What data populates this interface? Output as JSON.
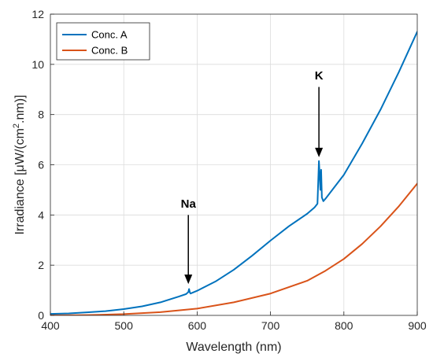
{
  "chart_data": {
    "type": "line",
    "title": "",
    "xlabel": "Wavelength (nm)",
    "ylabel_parts": {
      "before": "Irradiance [μW/(cm",
      "sup": "2",
      "after": ".nm)]"
    },
    "xlim": [
      400,
      900
    ],
    "ylim": [
      0,
      12
    ],
    "xticks": [
      400,
      500,
      600,
      700,
      800,
      900
    ],
    "yticks": [
      0,
      2,
      4,
      6,
      8,
      10,
      12
    ],
    "grid": true,
    "legend_position": "top-left",
    "series": [
      {
        "name": "Conc. A",
        "color": "#0072BD",
        "x": [
          400,
          425,
          450,
          475,
          500,
          525,
          550,
          575,
          585,
          588,
          589,
          590,
          591,
          600,
          625,
          650,
          675,
          700,
          725,
          750,
          760,
          764,
          766,
          768,
          769,
          770,
          772,
          775,
          800,
          825,
          850,
          875,
          900
        ],
        "y": [
          0.06,
          0.08,
          0.12,
          0.17,
          0.25,
          0.36,
          0.52,
          0.75,
          0.85,
          0.93,
          1.05,
          0.92,
          0.87,
          0.98,
          1.35,
          1.82,
          2.38,
          2.98,
          3.55,
          4.05,
          4.3,
          4.45,
          6.15,
          5.0,
          5.8,
          4.7,
          4.55,
          4.65,
          5.6,
          6.85,
          8.2,
          9.7,
          11.3
        ]
      },
      {
        "name": "Conc. B",
        "color": "#D95319",
        "x": [
          400,
          450,
          500,
          550,
          600,
          650,
          700,
          750,
          775,
          800,
          825,
          850,
          875,
          900
        ],
        "y": [
          0.0,
          0.01,
          0.05,
          0.13,
          0.27,
          0.52,
          0.87,
          1.38,
          1.78,
          2.25,
          2.85,
          3.55,
          4.35,
          5.25
        ]
      }
    ],
    "annotations": [
      {
        "text": "Na",
        "x": 588,
        "y_text": 4.3,
        "y_arrow_start": 4.0,
        "y_arrow_end": 1.25
      },
      {
        "text": "K",
        "x": 766,
        "y_text": 9.4,
        "y_arrow_start": 9.1,
        "y_arrow_end": 6.3
      }
    ]
  }
}
